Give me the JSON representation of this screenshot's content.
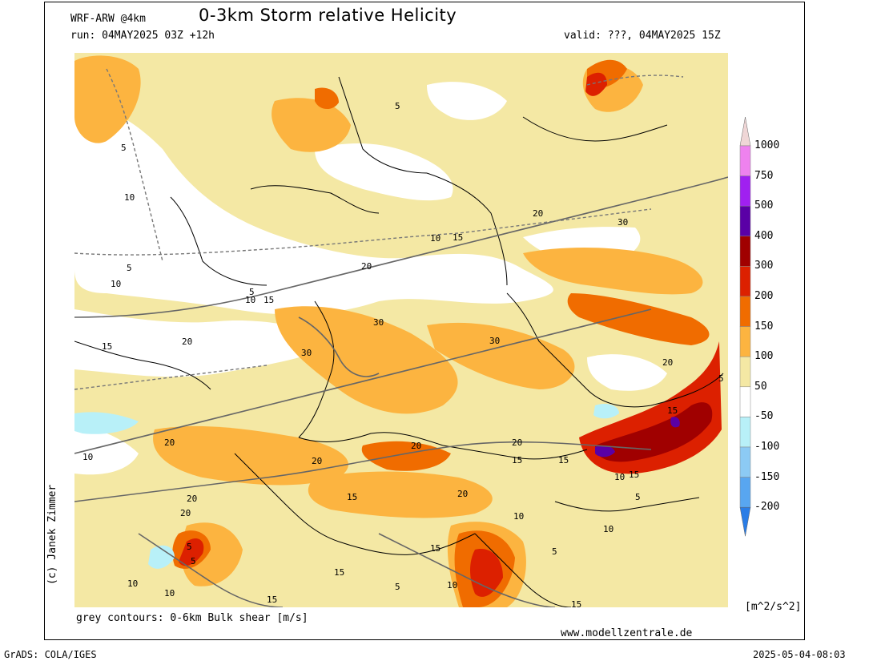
{
  "header": {
    "model": "WRF-ARW @4km",
    "title": "0-3km Storm relative Helicity",
    "run": "run: 04MAY2025 03Z +12h",
    "valid": "valid: ???, 04MAY2025 15Z"
  },
  "footer": {
    "contours_note": "grey contours: 0-6km Bulk shear [m/s]",
    "website": "www.modellzentrale.de",
    "software": "GrADS: COLA/IGES",
    "timestamp": "2025-05-04-08:03"
  },
  "credit": "(c) Janek Zimmer",
  "colorbar": {
    "units": "[m^2/s^2]",
    "levels": [
      "1000",
      "750",
      "500",
      "400",
      "300",
      "200",
      "150",
      "100",
      "50",
      "-50",
      "-100",
      "-150",
      "-200"
    ],
    "colors": [
      "#efd6d6",
      "#ee82ee",
      "#a020f0",
      "#5a00a6",
      "#a00000",
      "#dc2000",
      "#f06c00",
      "#fcb440",
      "#f4e8a4",
      "#ffffff",
      "#b8f0f8",
      "#8ccaf4",
      "#58a6f0",
      "#2a7de6"
    ]
  },
  "map": {
    "contour_labels": [
      "5",
      "10",
      "5",
      "10",
      "5",
      "10",
      "15",
      "20",
      "30",
      "20",
      "15",
      "10",
      "5",
      "30",
      "30",
      "30",
      "20",
      "15",
      "20",
      "10",
      "20",
      "15",
      "20",
      "15",
      "10",
      "5",
      "10",
      "15",
      "20",
      "15",
      "10",
      "5",
      "15",
      "20",
      "20",
      "5",
      "10",
      "15",
      "10",
      "5",
      "15",
      "10",
      "5",
      "15",
      "20",
      "30",
      "15",
      "10",
      "20",
      "5"
    ]
  }
}
